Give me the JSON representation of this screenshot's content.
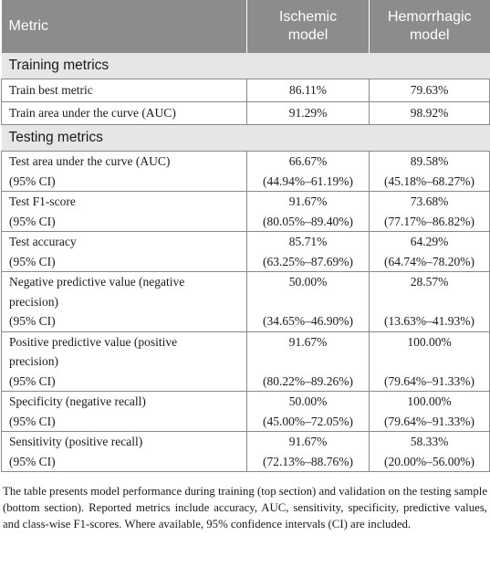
{
  "header": {
    "col1": "Metric",
    "col2_line1": "Ischemic",
    "col2_line2": "model",
    "col3_line1": "Hemorrhagic",
    "col3_line2": "model"
  },
  "training": {
    "title": "Training metrics",
    "rows": [
      {
        "metric": "Train best metric",
        "ischemic": "86.11%",
        "hemorrhagic": "79.63%"
      },
      {
        "metric": "Train area under the curve (AUC)",
        "ischemic": "91.29%",
        "hemorrhagic": "98.92%"
      }
    ]
  },
  "testing": {
    "title": "Testing metrics",
    "rows": [
      {
        "metric_lines": [
          "Test area under the curve (AUC)"
        ],
        "ci_label": "(95% CI)",
        "ischemic": "66.67%",
        "ischemic_ci": "(44.94%–61.19%)",
        "hemorrhagic": "89.58%",
        "hemorrhagic_ci": "(45.18%–68.27%)"
      },
      {
        "metric_lines": [
          "Test F1-score"
        ],
        "ci_label": "(95% CI)",
        "ischemic": "91.67%",
        "ischemic_ci": "(80.05%–89.40%)",
        "hemorrhagic": "73.68%",
        "hemorrhagic_ci": "(77.17%–86.82%)"
      },
      {
        "metric_lines": [
          "Test accuracy"
        ],
        "ci_label": "(95% CI)",
        "ischemic": "85.71%",
        "ischemic_ci": "(63.25%–87.69%)",
        "hemorrhagic": "64.29%",
        "hemorrhagic_ci": "(64.74%–78.20%)"
      },
      {
        "metric_lines": [
          "Negative predictive value (negative",
          "precision)"
        ],
        "ci_label": "(95% CI)",
        "ischemic": "50.00%",
        "ischemic_ci": "(34.65%–46.90%)",
        "hemorrhagic": "28.57%",
        "hemorrhagic_ci": "(13.63%–41.93%)"
      },
      {
        "metric_lines": [
          "Positive predictive value (positive",
          "precision)"
        ],
        "ci_label": "(95% CI)",
        "ischemic": "91.67%",
        "ischemic_ci": "(80.22%–89.26%)",
        "hemorrhagic": "100.00%",
        "hemorrhagic_ci": "(79.64%–91.33%)"
      },
      {
        "metric_lines": [
          "Specificity (negative recall)"
        ],
        "ci_label": "(95% CI)",
        "ischemic": "50.00%",
        "ischemic_ci": "(45.00%–72.05%)",
        "hemorrhagic": "100.00%",
        "hemorrhagic_ci": "(79.64%–91.33%)"
      },
      {
        "metric_lines": [
          "Sensitivity (positive recall)"
        ],
        "ci_label": "(95% CI)",
        "ischemic": "91.67%",
        "ischemic_ci": "(72.13%–88.76%)",
        "hemorrhagic": "58.33%",
        "hemorrhagic_ci": "(20.00%–56.00%)"
      }
    ]
  },
  "caption": "The table presents model performance during training (top section) and validation on the testing sample (bottom section). Reported metrics include accuracy, AUC, sensitivity, specificity, predictive values, and class-wise F1-scores. Where available, 95% confidence intervals (CI) are included."
}
